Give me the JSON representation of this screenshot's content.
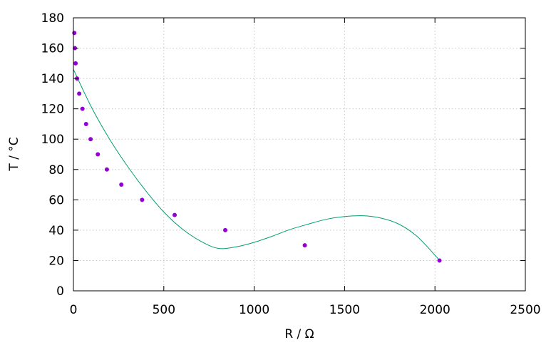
{
  "chart_data": {
    "type": "scatter",
    "xlabel": "R / Ω",
    "ylabel": "T / °C",
    "xlim": [
      0,
      2500
    ],
    "ylim": [
      0,
      180
    ],
    "xticks": [
      0,
      500,
      1000,
      1500,
      2000,
      2500
    ],
    "yticks": [
      0,
      20,
      40,
      60,
      80,
      100,
      120,
      140,
      160,
      180
    ],
    "grid": true,
    "series": [
      {
        "kind": "points",
        "color": "#9400d3",
        "points": [
          {
            "x": 5,
            "y": 170
          },
          {
            "x": 8,
            "y": 160
          },
          {
            "x": 12,
            "y": 150
          },
          {
            "x": 20,
            "y": 140
          },
          {
            "x": 32,
            "y": 130
          },
          {
            "x": 50,
            "y": 120
          },
          {
            "x": 70,
            "y": 110
          },
          {
            "x": 95,
            "y": 100
          },
          {
            "x": 135,
            "y": 90
          },
          {
            "x": 185,
            "y": 80
          },
          {
            "x": 265,
            "y": 70
          },
          {
            "x": 380,
            "y": 60
          },
          {
            "x": 560,
            "y": 50
          },
          {
            "x": 840,
            "y": 40
          },
          {
            "x": 1280,
            "y": 30
          },
          {
            "x": 2025,
            "y": 20
          }
        ]
      },
      {
        "kind": "fit-curve",
        "color": "#009e73",
        "x": [
          0,
          100,
          200,
          300,
          400,
          500,
          600,
          700,
          800,
          900,
          1000,
          1100,
          1200,
          1300,
          1400,
          1500,
          1600,
          1700,
          1800,
          1900,
          2000,
          2025
        ],
        "y": [
          146,
          121,
          100,
          82,
          66,
          52,
          41,
          33,
          28,
          29,
          32,
          36,
          40.5,
          44,
          47.2,
          49,
          49.5,
          48,
          44,
          36,
          23.5,
          20
        ]
      }
    ]
  }
}
